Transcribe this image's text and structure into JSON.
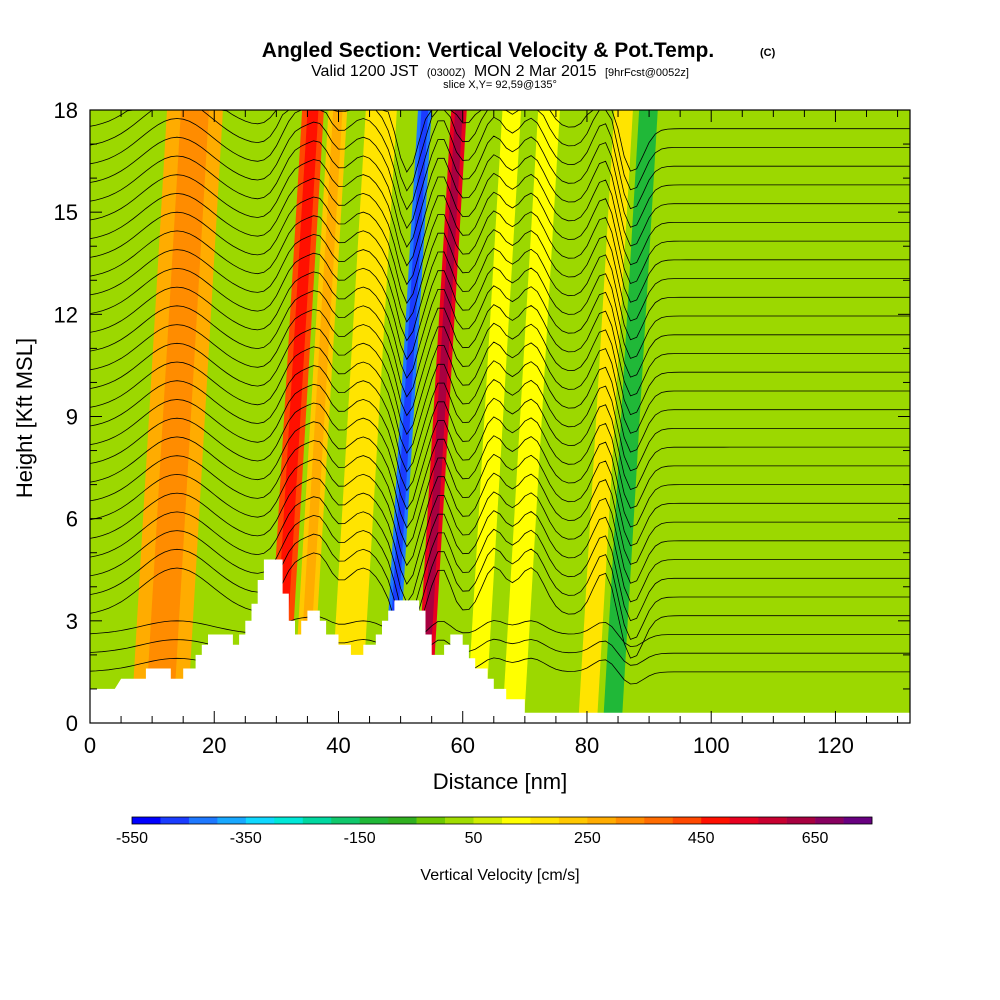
{
  "titles": {
    "main": "Angled Section: Vertical Velocity & Pot.Temp.",
    "main_units": "(C)",
    "valid_prefix": "Valid 1200 JST",
    "valid_z": "(0300Z)",
    "valid_date": "MON 2 Mar 2015",
    "fcst": "[9hrFcst@0052z]",
    "slice": "slice X,Y= 92,59@135°"
  },
  "chart_data": {
    "type": "heatmap",
    "xlabel": "Distance [nm]",
    "ylabel": "Height [Kft MSL]",
    "xlim": [
      0,
      132
    ],
    "ylim": [
      0,
      18
    ],
    "xticks_major": [
      0,
      20,
      40,
      60,
      80,
      100,
      120
    ],
    "xticks_minor_step": 5,
    "yticks_major": [
      0,
      3,
      6,
      9,
      12,
      15,
      18
    ],
    "yticks_minor_step": 1,
    "colorbar": {
      "label": "Vertical Velocity [cm/s]",
      "min": -550,
      "max": 750,
      "step": 50,
      "tick_labels": [
        -550,
        -350,
        -150,
        50,
        250,
        450,
        650
      ],
      "colors": [
        "#0000ff",
        "#1a3cff",
        "#1e78ff",
        "#18a8ff",
        "#10d8ff",
        "#00e8d8",
        "#00d8a0",
        "#10c86c",
        "#20b838",
        "#30b020",
        "#6cc800",
        "#a0dc00",
        "#d0ec00",
        "#ffff00",
        "#ffe400",
        "#ffc800",
        "#ffac00",
        "#ff8c00",
        "#ff6c00",
        "#ff4800",
        "#ff1000",
        "#e80020",
        "#c80030",
        "#a80040",
        "#880060",
        "#680080"
      ]
    },
    "velocity_bands": [
      {
        "x": 14,
        "w": 9,
        "v": 260
      },
      {
        "x": 33,
        "w": 3.5,
        "v": 400
      },
      {
        "x": 37,
        "w": 3,
        "v": 220
      },
      {
        "x": 44,
        "w": 5,
        "v": 180
      },
      {
        "x": 51,
        "w": 2.2,
        "v": -420
      },
      {
        "x": 56.5,
        "w": 2.5,
        "v": 540
      },
      {
        "x": 65,
        "w": 3,
        "v": 120
      },
      {
        "x": 71,
        "w": 3.5,
        "v": 110
      },
      {
        "x": 83,
        "w": 3,
        "v": 160
      },
      {
        "x": 87,
        "w": 3,
        "v": -110
      }
    ],
    "terrain_kft": [
      [
        0,
        1.0
      ],
      [
        4,
        1.0
      ],
      [
        5,
        1.3
      ],
      [
        9,
        1.3
      ],
      [
        9,
        1.6
      ],
      [
        13,
        1.6
      ],
      [
        13,
        1.3
      ],
      [
        15,
        1.3
      ],
      [
        15,
        1.6
      ],
      [
        17,
        1.6
      ],
      [
        17,
        2.0
      ],
      [
        18,
        2.0
      ],
      [
        18,
        2.3
      ],
      [
        19,
        2.3
      ],
      [
        19,
        2.6
      ],
      [
        23,
        2.6
      ],
      [
        23,
        2.3
      ],
      [
        24,
        2.3
      ],
      [
        24,
        2.6
      ],
      [
        25,
        2.6
      ],
      [
        25,
        3.0
      ],
      [
        26,
        3.0
      ],
      [
        26,
        3.5
      ],
      [
        27,
        3.5
      ],
      [
        27,
        4.2
      ],
      [
        28,
        4.2
      ],
      [
        28,
        4.8
      ],
      [
        31,
        4.8
      ],
      [
        31,
        3.8
      ],
      [
        32,
        3.8
      ],
      [
        32,
        3.0
      ],
      [
        33,
        3.0
      ],
      [
        33,
        2.6
      ],
      [
        34,
        2.6
      ],
      [
        34,
        3.0
      ],
      [
        35,
        3.0
      ],
      [
        35,
        3.3
      ],
      [
        37,
        3.3
      ],
      [
        37,
        3.0
      ],
      [
        38,
        3.0
      ],
      [
        38,
        2.6
      ],
      [
        40,
        2.6
      ],
      [
        40,
        2.3
      ],
      [
        42,
        2.3
      ],
      [
        42,
        2.0
      ],
      [
        44,
        2.0
      ],
      [
        44,
        2.3
      ],
      [
        46,
        2.3
      ],
      [
        46,
        2.6
      ],
      [
        47,
        2.6
      ],
      [
        47,
        3.0
      ],
      [
        48,
        3.0
      ],
      [
        48,
        3.3
      ],
      [
        49,
        3.3
      ],
      [
        49,
        3.6
      ],
      [
        53,
        3.6
      ],
      [
        53,
        3.3
      ],
      [
        54,
        3.3
      ],
      [
        54,
        2.6
      ],
      [
        55,
        2.6
      ],
      [
        55,
        2.0
      ],
      [
        57,
        2.0
      ],
      [
        57,
        2.3
      ],
      [
        58,
        2.3
      ],
      [
        58,
        2.6
      ],
      [
        60,
        2.6
      ],
      [
        60,
        2.3
      ],
      [
        61,
        2.3
      ],
      [
        61,
        1.9
      ],
      [
        62,
        1.9
      ],
      [
        62,
        1.6
      ],
      [
        64,
        1.6
      ],
      [
        64,
        1.3
      ],
      [
        65,
        1.3
      ],
      [
        65,
        1.0
      ],
      [
        67,
        1.0
      ],
      [
        67,
        0.7
      ],
      [
        70,
        0.7
      ],
      [
        70,
        0.3
      ],
      [
        132,
        0.3
      ]
    ],
    "contour_levels": 30
  }
}
